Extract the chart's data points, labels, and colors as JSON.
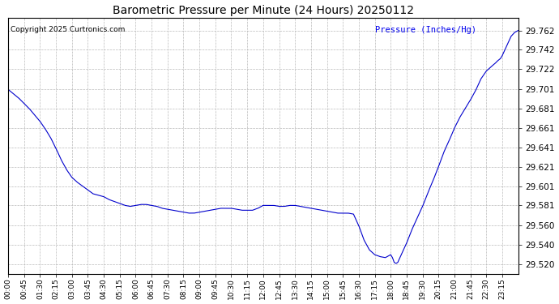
{
  "title": "Barometric Pressure per Minute (24 Hours) 20250112",
  "copyright_text": "Copyright 2025 Curtronics.com",
  "legend_label": "Pressure (Inches/Hg)",
  "line_color": "#0000cc",
  "background_color": "#ffffff",
  "grid_color": "#aaaaaa",
  "ylim_min": 29.51,
  "ylim_max": 29.775,
  "yticks": [
    29.52,
    29.54,
    29.56,
    29.581,
    29.601,
    29.621,
    29.641,
    29.661,
    29.681,
    29.701,
    29.722,
    29.742,
    29.762
  ],
  "xtick_labels": [
    "00:00",
    "00:45",
    "01:30",
    "02:15",
    "03:00",
    "03:45",
    "04:30",
    "05:15",
    "06:00",
    "06:45",
    "07:30",
    "08:15",
    "09:00",
    "09:45",
    "10:30",
    "11:15",
    "12:00",
    "12:45",
    "13:30",
    "14:15",
    "15:00",
    "15:45",
    "16:30",
    "17:15",
    "18:00",
    "18:45",
    "19:30",
    "20:15",
    "21:00",
    "21:45",
    "22:30",
    "23:15"
  ],
  "n_points": 1441,
  "control_points": [
    [
      0,
      29.701
    ],
    [
      30,
      29.692
    ],
    [
      60,
      29.681
    ],
    [
      90,
      29.668
    ],
    [
      105,
      29.66
    ],
    [
      120,
      29.651
    ],
    [
      135,
      29.64
    ],
    [
      150,
      29.628
    ],
    [
      165,
      29.618
    ],
    [
      180,
      29.61
    ],
    [
      195,
      29.605
    ],
    [
      210,
      29.601
    ],
    [
      225,
      29.597
    ],
    [
      240,
      29.593
    ],
    [
      270,
      29.59
    ],
    [
      285,
      29.587
    ],
    [
      300,
      29.585
    ],
    [
      315,
      29.583
    ],
    [
      330,
      29.581
    ],
    [
      345,
      29.58
    ],
    [
      360,
      29.581
    ],
    [
      375,
      29.582
    ],
    [
      390,
      29.582
    ],
    [
      405,
      29.581
    ],
    [
      420,
      29.58
    ],
    [
      435,
      29.578
    ],
    [
      450,
      29.577
    ],
    [
      465,
      29.576
    ],
    [
      480,
      29.575
    ],
    [
      495,
      29.574
    ],
    [
      510,
      29.573
    ],
    [
      525,
      29.573
    ],
    [
      540,
      29.574
    ],
    [
      555,
      29.575
    ],
    [
      570,
      29.576
    ],
    [
      585,
      29.577
    ],
    [
      600,
      29.578
    ],
    [
      615,
      29.578
    ],
    [
      630,
      29.578
    ],
    [
      645,
      29.577
    ],
    [
      660,
      29.576
    ],
    [
      675,
      29.576
    ],
    [
      690,
      29.576
    ],
    [
      705,
      29.578
    ],
    [
      720,
      29.581
    ],
    [
      735,
      29.581
    ],
    [
      750,
      29.581
    ],
    [
      765,
      29.58
    ],
    [
      780,
      29.58
    ],
    [
      795,
      29.581
    ],
    [
      810,
      29.581
    ],
    [
      825,
      29.58
    ],
    [
      840,
      29.579
    ],
    [
      855,
      29.578
    ],
    [
      870,
      29.577
    ],
    [
      885,
      29.576
    ],
    [
      900,
      29.575
    ],
    [
      915,
      29.574
    ],
    [
      930,
      29.573
    ],
    [
      945,
      29.573
    ],
    [
      960,
      29.573
    ],
    [
      975,
      29.572
    ],
    [
      990,
      29.56
    ],
    [
      1005,
      29.545
    ],
    [
      1020,
      29.535
    ],
    [
      1035,
      29.53
    ],
    [
      1050,
      29.528
    ],
    [
      1065,
      29.527
    ],
    [
      1080,
      29.53
    ],
    [
      1085,
      29.527
    ],
    [
      1090,
      29.522
    ],
    [
      1095,
      29.521
    ],
    [
      1100,
      29.522
    ],
    [
      1110,
      29.53
    ],
    [
      1125,
      29.542
    ],
    [
      1140,
      29.556
    ],
    [
      1155,
      29.568
    ],
    [
      1170,
      29.58
    ],
    [
      1185,
      29.594
    ],
    [
      1200,
      29.607
    ],
    [
      1215,
      29.621
    ],
    [
      1230,
      29.636
    ],
    [
      1245,
      29.648
    ],
    [
      1260,
      29.661
    ],
    [
      1275,
      29.672
    ],
    [
      1290,
      29.681
    ],
    [
      1305,
      29.69
    ],
    [
      1320,
      29.7
    ],
    [
      1335,
      29.712
    ],
    [
      1350,
      29.72
    ],
    [
      1365,
      29.725
    ],
    [
      1375,
      29.728
    ],
    [
      1380,
      29.73
    ],
    [
      1390,
      29.733
    ],
    [
      1395,
      29.736
    ],
    [
      1400,
      29.74
    ],
    [
      1405,
      29.744
    ],
    [
      1410,
      29.748
    ],
    [
      1415,
      29.752
    ],
    [
      1420,
      29.756
    ],
    [
      1425,
      29.758
    ],
    [
      1430,
      29.76
    ],
    [
      1435,
      29.761
    ],
    [
      1440,
      29.762
    ]
  ]
}
